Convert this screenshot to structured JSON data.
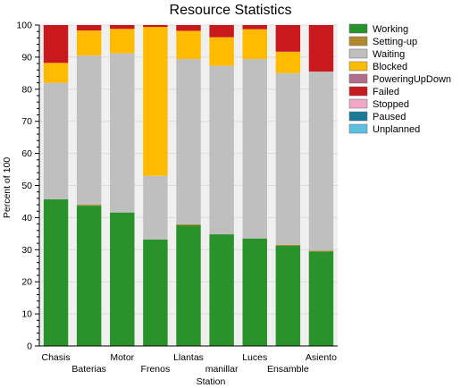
{
  "chart_data": {
    "type": "bar",
    "stacked": true,
    "title": "Resource Statistics",
    "xlabel": "Station",
    "ylabel": "Percent of 100",
    "ylim": [
      0,
      100
    ],
    "yticks": [
      0,
      10,
      20,
      30,
      40,
      50,
      60,
      70,
      80,
      90,
      100
    ],
    "grid": true,
    "legend_position": "right",
    "categories": [
      "Chasis",
      "Baterias",
      "Motor",
      "Frenos",
      "Llantas",
      "manillar",
      "Luces",
      "Ensamble",
      "Asiento"
    ],
    "series": [
      {
        "name": "Working",
        "color": "#2a922a",
        "values": [
          45.7,
          43.7,
          41.6,
          33.2,
          37.6,
          34.8,
          33.5,
          31.2,
          29.4
        ]
      },
      {
        "name": "Setting-up",
        "color": "#b08a2e",
        "values": [
          0,
          0.3,
          0,
          0,
          0.3,
          0,
          0,
          0.3,
          0.3
        ]
      },
      {
        "name": "Waiting",
        "color": "#bfbfbf",
        "values": [
          36.3,
          46.5,
          49.6,
          19.8,
          51.5,
          52.5,
          55.9,
          53.5,
          55.8
        ]
      },
      {
        "name": "Blocked",
        "color": "#ffbb00",
        "values": [
          6.2,
          7.8,
          7.6,
          46.4,
          8.8,
          8.9,
          9.3,
          6.7,
          0
        ]
      },
      {
        "name": "PoweringUpDown",
        "color": "#b06f8a",
        "values": [
          0,
          0,
          0,
          0,
          0,
          0,
          0,
          0,
          0
        ]
      },
      {
        "name": "Failed",
        "color": "#c8191e",
        "values": [
          11.8,
          1.7,
          1.2,
          0.6,
          1.8,
          3.8,
          1.3,
          8.3,
          14.5
        ]
      },
      {
        "name": "Stopped",
        "color": "#f0a8c8",
        "values": [
          0,
          0,
          0,
          0,
          0,
          0,
          0,
          0,
          0
        ]
      },
      {
        "name": "Paused",
        "color": "#1a7a9a",
        "values": [
          0,
          0,
          0,
          0,
          0,
          0,
          0,
          0,
          0
        ]
      },
      {
        "name": "Unplanned",
        "color": "#5bc0de",
        "values": [
          0,
          0,
          0,
          0,
          0,
          0,
          0,
          0,
          0
        ]
      }
    ]
  }
}
